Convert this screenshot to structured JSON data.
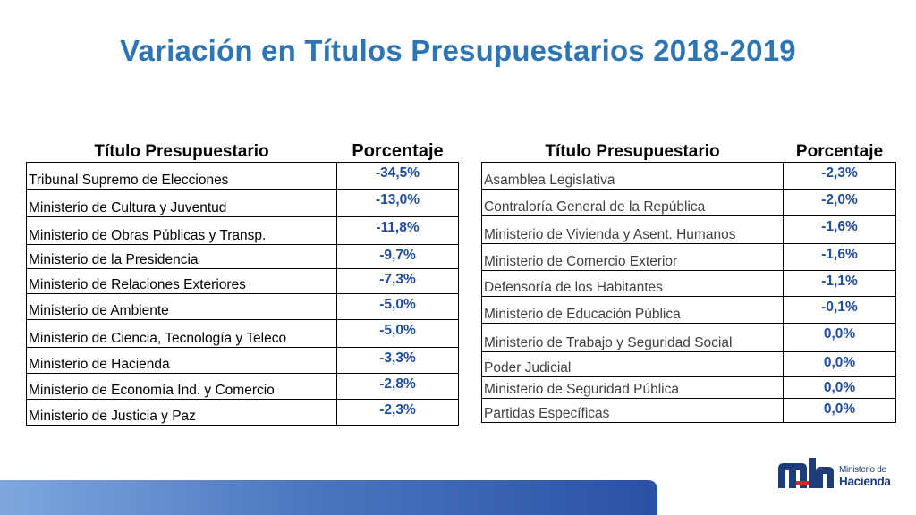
{
  "title": "Variación en Títulos Presupuestarios 2018-2019",
  "headers": {
    "name": "Título Presupuestario",
    "pct": "Porcentaje"
  },
  "left_rows": [
    {
      "name": "Tribunal Supremo de Elecciones",
      "pct": "-34,5%"
    },
    {
      "name": "Ministerio de Cultura y Juventud",
      "pct": "-13,0%"
    },
    {
      "name": "Ministerio de Obras Públicas y Transp.",
      "pct": "-11,8%"
    },
    {
      "name": "Ministerio de la Presidencia",
      "pct": "-9,7%"
    },
    {
      "name": "Ministerio de Relaciones Exteriores",
      "pct": "-7,3%"
    },
    {
      "name": "Ministerio de Ambiente",
      "pct": "-5,0%"
    },
    {
      "name": "Ministerio de Ciencia, Tecnología y Teleco",
      "pct": "-5,0%"
    },
    {
      "name": "Ministerio de Hacienda",
      "pct": "-3,3%"
    },
    {
      "name": "Ministerio de Economía Ind. y Comercio",
      "pct": "-2,8%"
    },
    {
      "name": "Ministerio de Justicia y Paz",
      "pct": "-2,3%"
    }
  ],
  "right_rows": [
    {
      "name": "Asamblea Legislativa",
      "pct": "-2,3%"
    },
    {
      "name": "Contraloría General de la República",
      "pct": "-2,0%"
    },
    {
      "name": "Ministerio de Vivienda y Asent. Humanos",
      "pct": "-1,6%"
    },
    {
      "name": "Ministerio de Comercio Exterior",
      "pct": "-1,6%"
    },
    {
      "name": "Defensoría de los Habitantes",
      "pct": "-1,1%"
    },
    {
      "name": "Ministerio de Educación Pública",
      "pct": "-0,1%"
    },
    {
      "name": "Ministerio de Trabajo y Seguridad Social",
      "pct": "0,0%"
    },
    {
      "name": "Poder Judicial",
      "pct": "0,0%"
    },
    {
      "name": "Ministerio de Seguridad Pública",
      "pct": "0,0%"
    },
    {
      "name": "Partidas Específicas",
      "pct": "0,0%"
    }
  ],
  "logo": {
    "line1": "Ministerio de",
    "line2": "Hacienda"
  },
  "colors": {
    "title": "#2e75b6",
    "pct": "#1f4e9c",
    "bar": "#2a51a5"
  }
}
